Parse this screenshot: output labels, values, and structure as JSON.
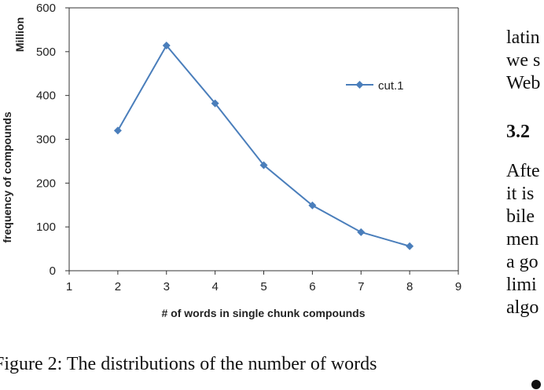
{
  "chart_data": {
    "type": "line",
    "xlabel": "# of words in single chunk compounds",
    "ylabel": "frequency of compounds",
    "yunit": "Million",
    "xlim": [
      1,
      9
    ],
    "ylim": [
      0,
      600
    ],
    "xticks": [
      1,
      2,
      3,
      4,
      5,
      6,
      7,
      8,
      9
    ],
    "yticks": [
      0,
      100,
      200,
      300,
      400,
      500,
      600
    ],
    "grid": false,
    "legend_position": "right",
    "series": [
      {
        "name": "cut.1",
        "color": "#4a7ebb",
        "marker": "diamond",
        "x": [
          2,
          3,
          4,
          5,
          6,
          7,
          8
        ],
        "y": [
          320,
          514,
          382,
          241,
          149,
          88,
          56
        ]
      }
    ]
  },
  "caption": {
    "line1": "Figure 2: The distributions of the number of words"
  },
  "side_text": {
    "lines": [
      "latin",
      "we s",
      "Web"
    ],
    "heading": "3.2",
    "para": [
      "Afte",
      "it is",
      "bile",
      "men",
      "a go",
      "limi",
      "algo"
    ]
  }
}
